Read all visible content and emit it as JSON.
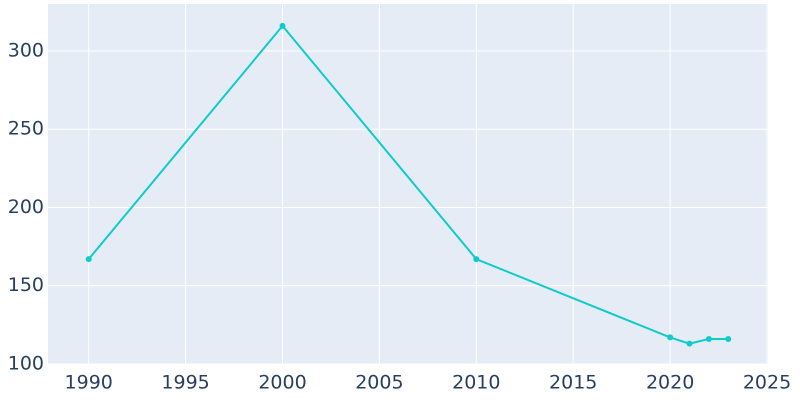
{
  "chart_data": {
    "type": "line",
    "x": [
      1990,
      2000,
      2010,
      2020,
      2021,
      2022,
      2023
    ],
    "series": [
      {
        "color": "#0fcbcb",
        "values": [
          167,
          316,
          167,
          117,
          113,
          116,
          116
        ]
      }
    ],
    "xlim": [
      1987.9,
      2025.05
    ],
    "ylim": [
      100,
      330
    ],
    "xticks": [
      1990,
      1995,
      2000,
      2005,
      2010,
      2015,
      2020,
      2025
    ],
    "yticks": [
      100,
      150,
      200,
      250,
      300
    ],
    "grid": true
  }
}
